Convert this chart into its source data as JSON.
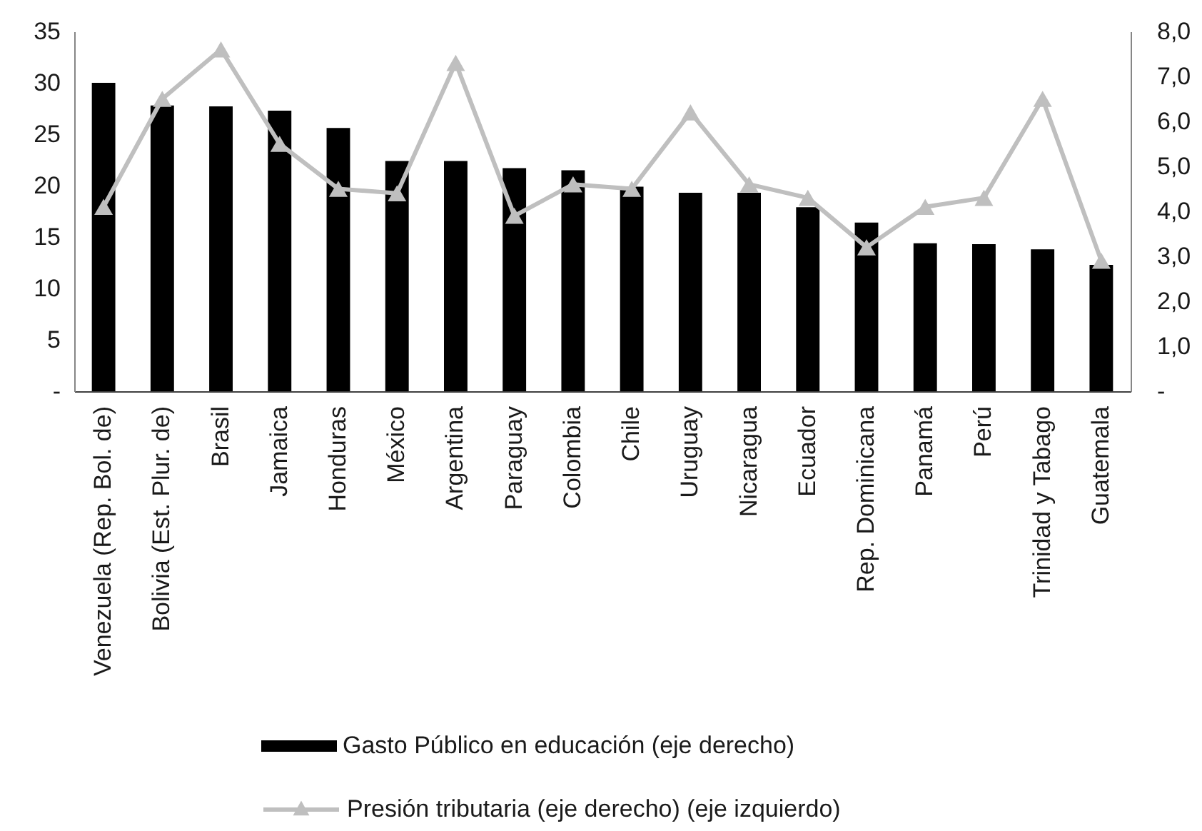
{
  "chart_data": {
    "type": "bar",
    "categories": [
      "Venezuela (Rep. Bol. de)",
      "Bolivia (Est. Plur. de)",
      "Brasil",
      "Jamaica",
      "Honduras",
      "México",
      "Argentina",
      "Paraguay",
      "Colombia",
      "Chile",
      "Uruguay",
      "Nicaragua",
      "Ecuador",
      "Rep. Dominicana",
      "Panamá",
      "Perú",
      "Trinidad y Tabago",
      "Guatemala"
    ],
    "series": [
      {
        "name": "Gasto Público en educación (eje derecho)",
        "color": "#000000",
        "values": [
          30.0,
          27.8,
          27.7,
          27.3,
          25.6,
          22.4,
          22.4,
          21.7,
          21.5,
          19.9,
          19.3,
          19.3,
          17.9,
          16.4,
          14.4,
          14.3,
          13.8,
          12.3
        ]
      },
      {
        "name": "Presión tributaria (eje derecho) (eje izquierdo)",
        "type": "line",
        "axis": "y2",
        "color": "#bfbfbf",
        "marker": "triangle",
        "values": [
          4.1,
          6.5,
          7.6,
          5.5,
          4.5,
          4.4,
          7.3,
          3.9,
          4.6,
          4.5,
          6.2,
          4.6,
          4.3,
          3.2,
          4.1,
          4.3,
          6.5,
          2.9
        ]
      }
    ],
    "ylim": [
      0,
      35
    ],
    "yticks": [
      {
        "value": 0,
        "label": "-"
      },
      5,
      10,
      15,
      20,
      25,
      30,
      35
    ],
    "y2lim": [
      0,
      8
    ],
    "y2ticks": [
      {
        "value": 0,
        "label": "-"
      },
      {
        "value": 1,
        "label": "1,0"
      },
      {
        "value": 2,
        "label": "2,0"
      },
      {
        "value": 3,
        "label": "3,0"
      },
      {
        "value": 4,
        "label": "4,0"
      },
      {
        "value": 5,
        "label": "5,0"
      },
      {
        "value": 6,
        "label": "6,0"
      },
      {
        "value": 7,
        "label": "7,0"
      },
      {
        "value": 8,
        "label": "8,0"
      }
    ],
    "grid": false,
    "legend": "bottom"
  }
}
